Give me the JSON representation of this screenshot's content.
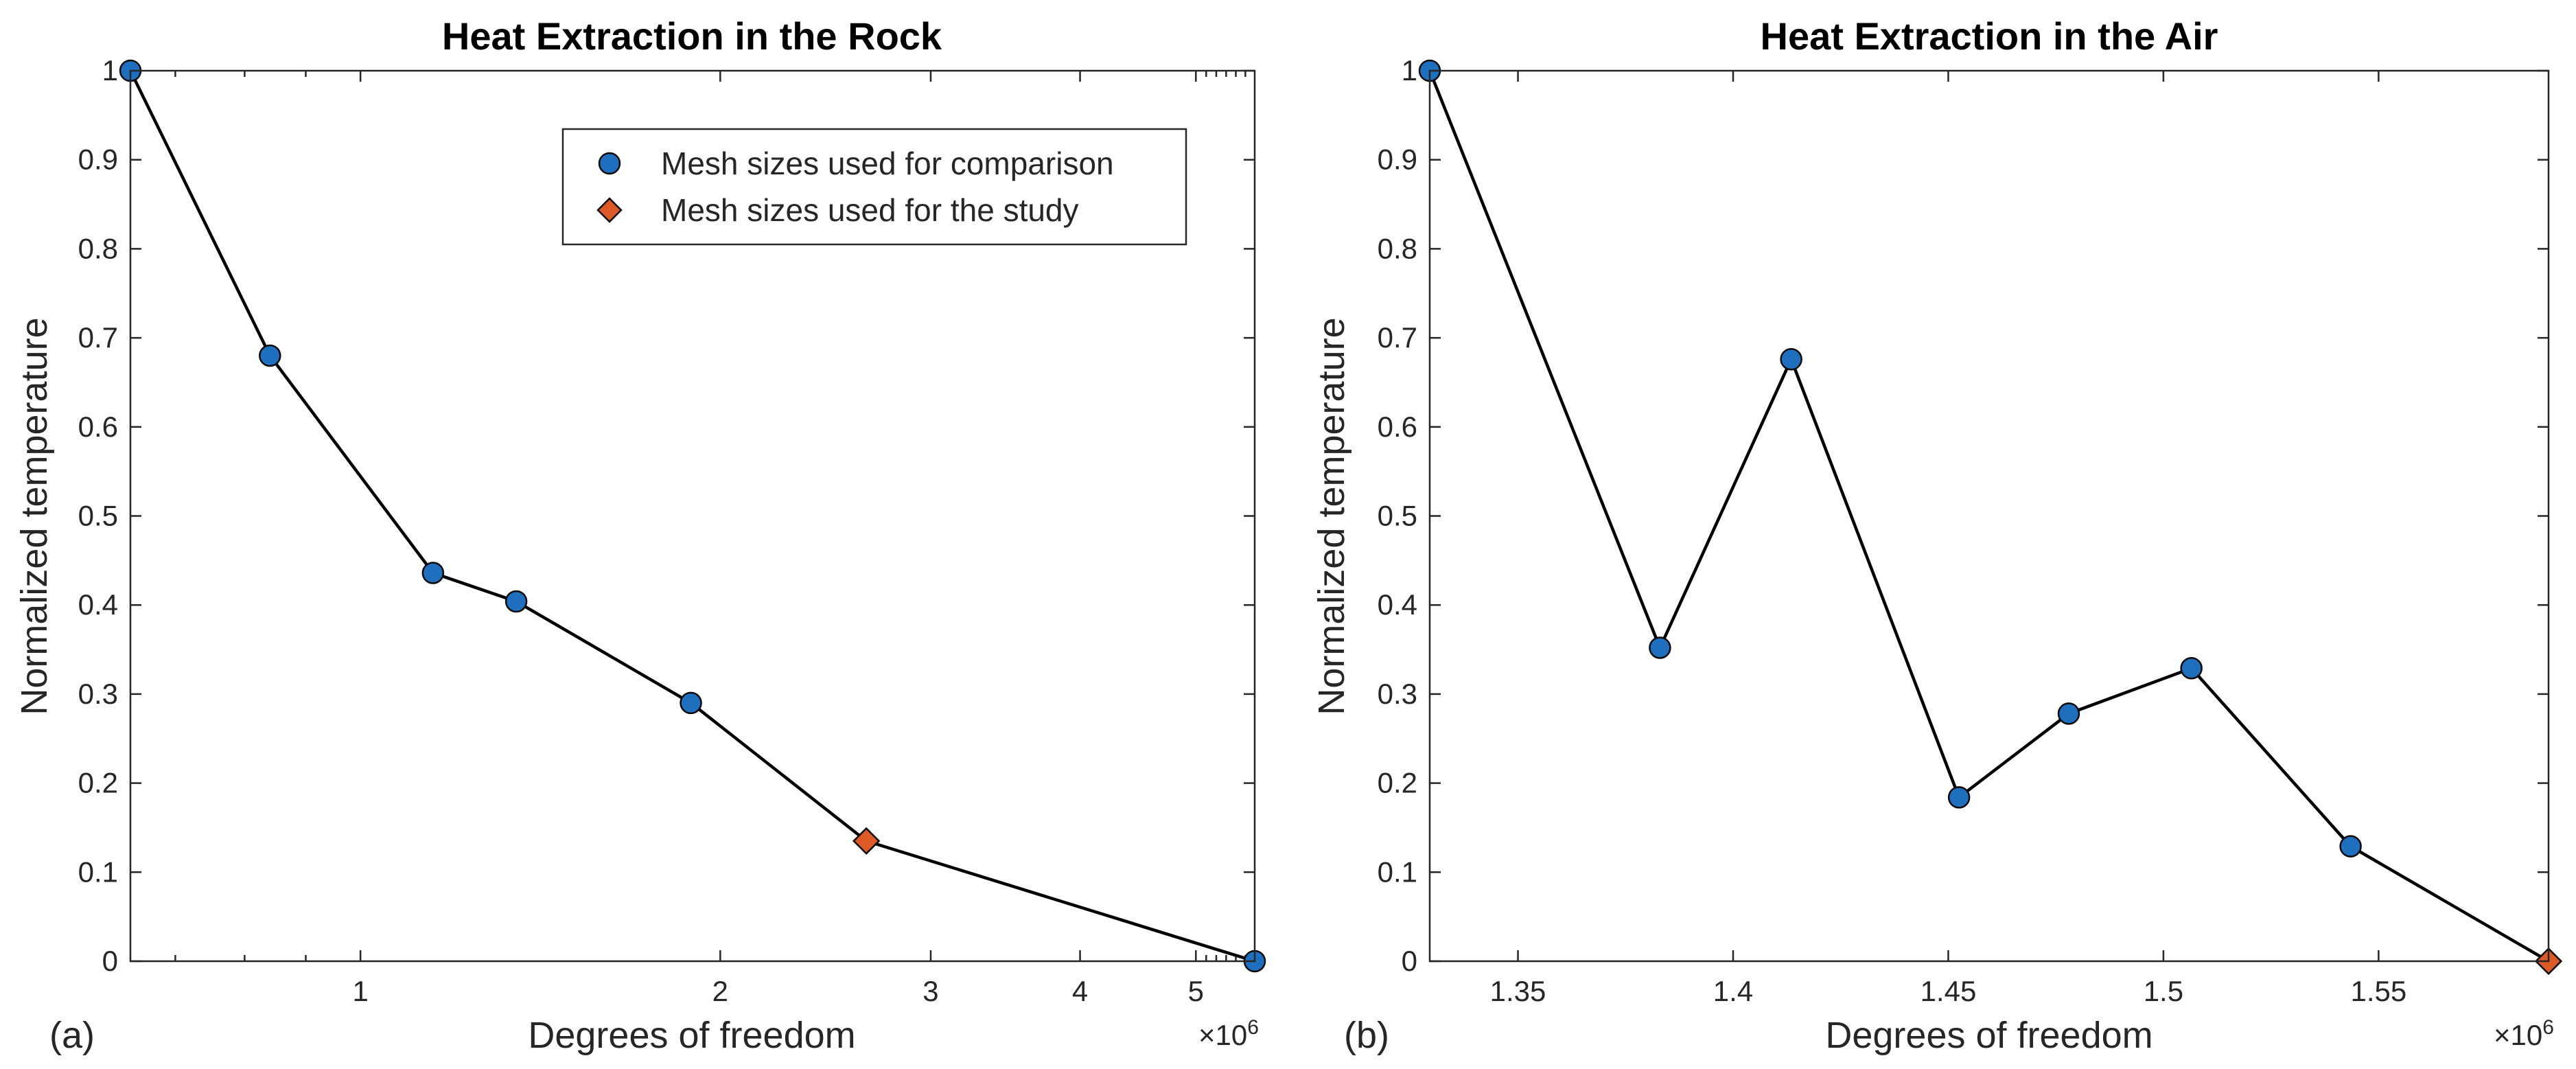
{
  "chart_data": [
    {
      "type": "line",
      "id": "rock",
      "title": "Heat Extraction in the Rock",
      "xlabel": "Degrees of freedom",
      "ylabel": "Normalized temperature",
      "panel_label": "(a)",
      "x_multiplier_label": "×10",
      "x_multiplier_exponent": "6",
      "x_scale": "log",
      "xlim": [
        0.642,
        5.6
      ],
      "ylim": [
        0,
        1
      ],
      "x_ticks": [
        {
          "value": 1,
          "label": "1"
        },
        {
          "value": 2,
          "label": "2"
        },
        {
          "value": 3,
          "label": "3"
        },
        {
          "value": 4,
          "label": "4"
        },
        {
          "value": 5,
          "label": "5"
        }
      ],
      "y_ticks": [
        {
          "value": 0,
          "label": "0"
        },
        {
          "value": 0.1,
          "label": "0.1"
        },
        {
          "value": 0.2,
          "label": "0.2"
        },
        {
          "value": 0.3,
          "label": "0.3"
        },
        {
          "value": 0.4,
          "label": "0.4"
        },
        {
          "value": 0.5,
          "label": "0.5"
        },
        {
          "value": 0.6,
          "label": "0.6"
        },
        {
          "value": 0.7,
          "label": "0.7"
        },
        {
          "value": 0.8,
          "label": "0.8"
        },
        {
          "value": 0.9,
          "label": "0.9"
        },
        {
          "value": 1,
          "label": "1"
        }
      ],
      "x": [
        0.642,
        0.84,
        1.15,
        1.35,
        1.89,
        2.65,
        5.6
      ],
      "y": [
        1.0,
        0.68,
        0.436,
        0.404,
        0.29,
        0.135,
        0.0
      ],
      "markers": [
        "comparison",
        "comparison",
        "comparison",
        "comparison",
        "comparison",
        "study",
        "comparison"
      ],
      "legend": {
        "placement": "top-right",
        "entries": [
          {
            "marker": "comparison",
            "label": "Mesh sizes used for comparison"
          },
          {
            "marker": "study",
            "label": "Mesh sizes used for the study"
          }
        ]
      }
    },
    {
      "type": "line",
      "id": "air",
      "title": "Heat Extraction in the Air",
      "xlabel": "Degrees of freedom",
      "ylabel": "Normalized temperature",
      "panel_label": "(b)",
      "x_multiplier_label": "×10",
      "x_multiplier_exponent": "6",
      "x_scale": "linear",
      "xlim": [
        1.3295,
        1.5895
      ],
      "ylim": [
        0,
        1
      ],
      "x_ticks": [
        {
          "value": 1.35,
          "label": "1.35"
        },
        {
          "value": 1.4,
          "label": "1.4"
        },
        {
          "value": 1.45,
          "label": "1.45"
        },
        {
          "value": 1.5,
          "label": "1.5"
        },
        {
          "value": 1.55,
          "label": "1.55"
        }
      ],
      "y_ticks": [
        {
          "value": 0,
          "label": "0"
        },
        {
          "value": 0.1,
          "label": "0.1"
        },
        {
          "value": 0.2,
          "label": "0.2"
        },
        {
          "value": 0.3,
          "label": "0.3"
        },
        {
          "value": 0.4,
          "label": "0.4"
        },
        {
          "value": 0.5,
          "label": "0.5"
        },
        {
          "value": 0.6,
          "label": "0.6"
        },
        {
          "value": 0.7,
          "label": "0.7"
        },
        {
          "value": 0.8,
          "label": "0.8"
        },
        {
          "value": 0.9,
          "label": "0.9"
        },
        {
          "value": 1,
          "label": "1"
        }
      ],
      "x": [
        1.3295,
        1.383,
        1.4135,
        1.4525,
        1.478,
        1.5065,
        1.5435,
        1.5895
      ],
      "y": [
        1.0,
        0.352,
        0.676,
        0.184,
        0.278,
        0.329,
        0.129,
        0.0
      ],
      "markers": [
        "comparison",
        "comparison",
        "comparison",
        "comparison",
        "comparison",
        "comparison",
        "comparison",
        "study"
      ]
    }
  ],
  "colors": {
    "comparison_marker": "#1f6fbf",
    "study_marker": "#dd5a26",
    "marker_edge": "#0a0a0a",
    "line": "#000000"
  }
}
